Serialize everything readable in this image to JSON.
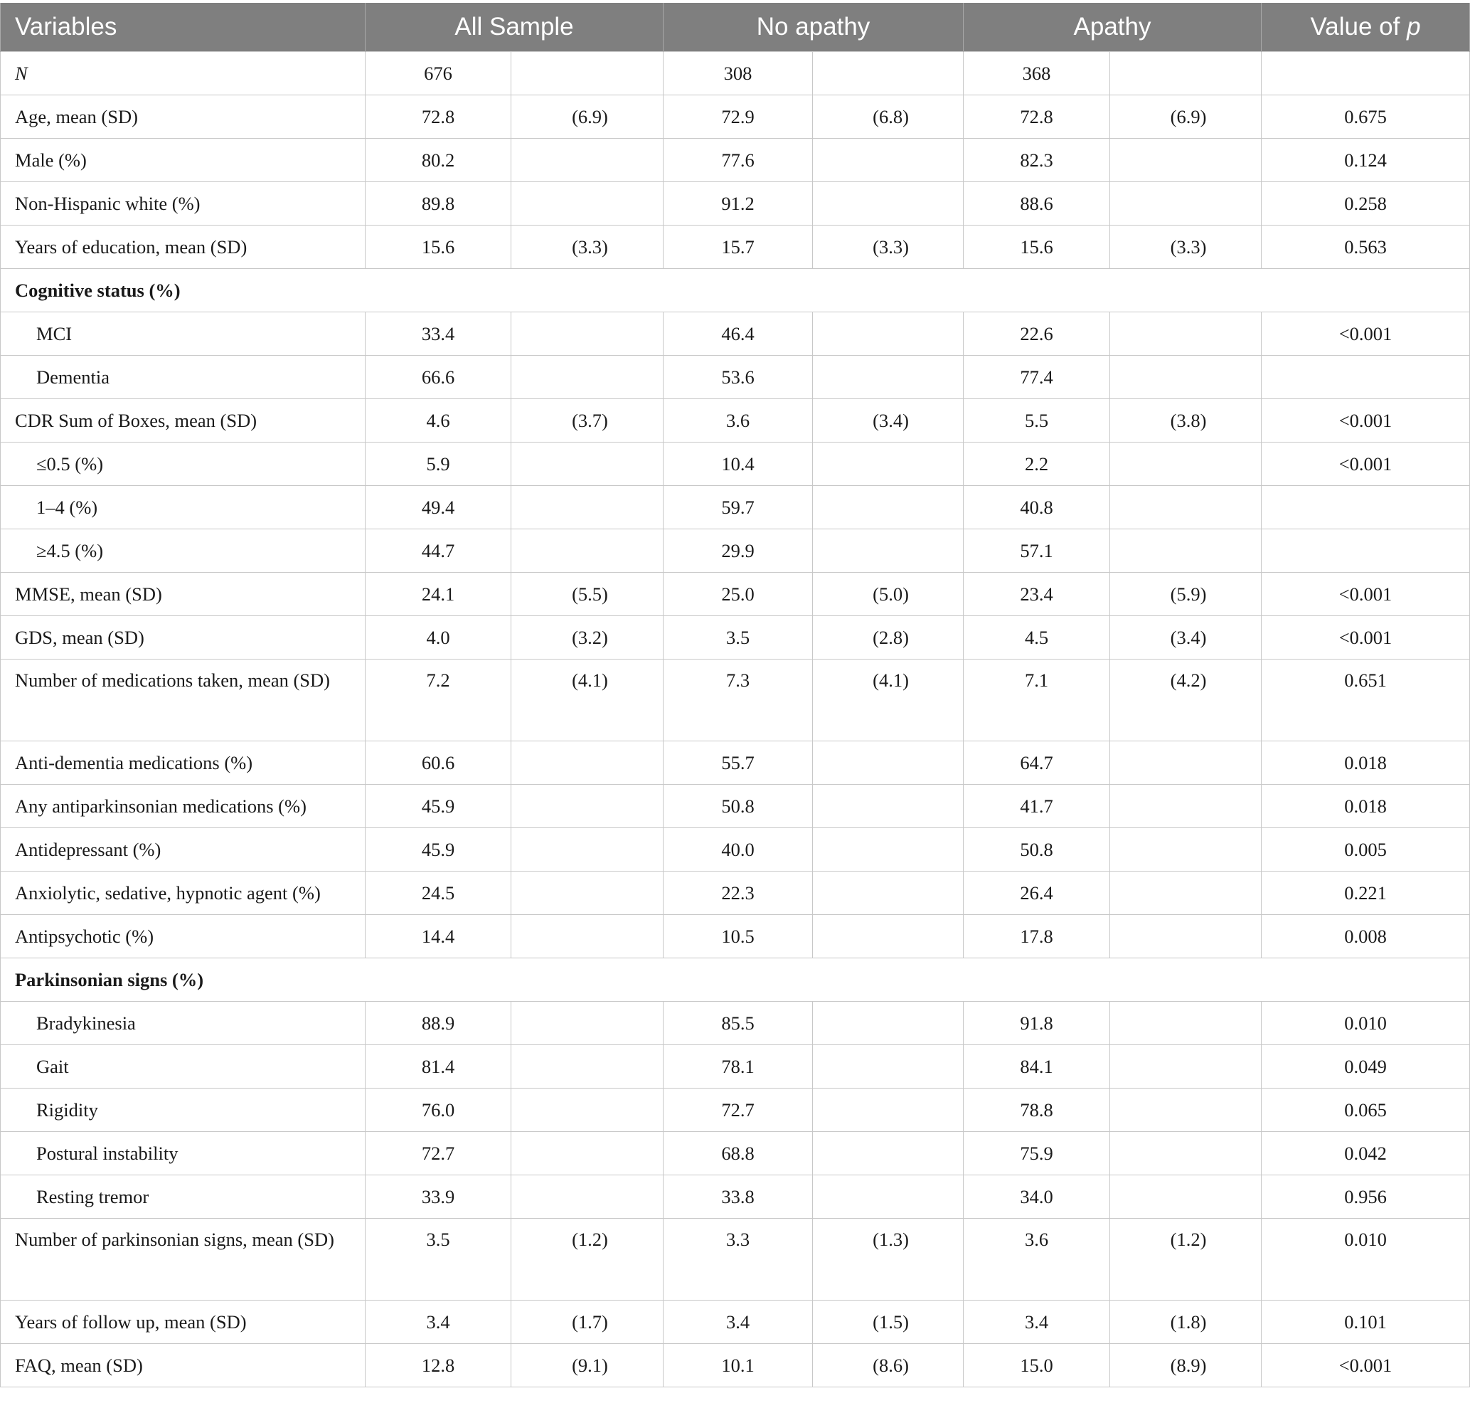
{
  "headers": {
    "variables": "Variables",
    "all_sample": "All Sample",
    "no_apathy": "No apathy",
    "apathy": "Apathy",
    "p_value_prefix": "Value of ",
    "p_value_symbol": "p"
  },
  "rows": [
    {
      "label": "N",
      "italic": true,
      "all": "676",
      "all_sd": "",
      "no": "308",
      "no_sd": "",
      "ap": "368",
      "ap_sd": "",
      "p": ""
    },
    {
      "label": "Age, mean (SD)",
      "all": "72.8",
      "all_sd": "(6.9)",
      "no": "72.9",
      "no_sd": "(6.8)",
      "ap": "72.8",
      "ap_sd": "(6.9)",
      "p": "0.675"
    },
    {
      "label": "Male (%)",
      "all": "80.2",
      "all_sd": "",
      "no": "77.6",
      "no_sd": "",
      "ap": "82.3",
      "ap_sd": "",
      "p": "0.124"
    },
    {
      "label": "Non-Hispanic white (%)",
      "all": "89.8",
      "all_sd": "",
      "no": "91.2",
      "no_sd": "",
      "ap": "88.6",
      "ap_sd": "",
      "p": "0.258"
    },
    {
      "label": "Years of education, mean (SD)",
      "all": "15.6",
      "all_sd": "(3.3)",
      "no": "15.7",
      "no_sd": "(3.3)",
      "ap": "15.6",
      "ap_sd": "(3.3)",
      "p": "0.563"
    },
    {
      "section": "Cognitive status (%)"
    },
    {
      "label": "MCI",
      "sub": true,
      "all": "33.4",
      "all_sd": "",
      "no": "46.4",
      "no_sd": "",
      "ap": "22.6",
      "ap_sd": "",
      "p": "<0.001"
    },
    {
      "label": "Dementia",
      "sub": true,
      "all": "66.6",
      "all_sd": "",
      "no": "53.6",
      "no_sd": "",
      "ap": "77.4",
      "ap_sd": "",
      "p": ""
    },
    {
      "label": "CDR Sum of Boxes, mean (SD)",
      "all": "4.6",
      "all_sd": "(3.7)",
      "no": "3.6",
      "no_sd": "(3.4)",
      "ap": "5.5",
      "ap_sd": "(3.8)",
      "p": "<0.001"
    },
    {
      "label": "≤0.5 (%)",
      "sub": true,
      "all": "5.9",
      "all_sd": "",
      "no": "10.4",
      "no_sd": "",
      "ap": "2.2",
      "ap_sd": "",
      "p": "<0.001"
    },
    {
      "label": "1–4 (%)",
      "sub": true,
      "all": "49.4",
      "all_sd": "",
      "no": "59.7",
      "no_sd": "",
      "ap": "40.8",
      "ap_sd": "",
      "p": ""
    },
    {
      "label": "≥4.5 (%)",
      "sub": true,
      "all": "44.7",
      "all_sd": "",
      "no": "29.9",
      "no_sd": "",
      "ap": "57.1",
      "ap_sd": "",
      "p": ""
    },
    {
      "label": "MMSE, mean (SD)",
      "all": "24.1",
      "all_sd": "(5.5)",
      "no": "25.0",
      "no_sd": "(5.0)",
      "ap": "23.4",
      "ap_sd": "(5.9)",
      "p": "<0.001"
    },
    {
      "label": "GDS, mean (SD)",
      "all": "4.0",
      "all_sd": "(3.2)",
      "no": "3.5",
      "no_sd": "(2.8)",
      "ap": "4.5",
      "ap_sd": "(3.4)",
      "p": "<0.001"
    },
    {
      "label": "Number of medications taken, mean (SD)",
      "tall": true,
      "all": "7.2",
      "all_sd": "(4.1)",
      "no": "7.3",
      "no_sd": "(4.1)",
      "ap": "7.1",
      "ap_sd": "(4.2)",
      "p": "0.651"
    },
    {
      "label": "Anti-dementia medications (%)",
      "all": "60.6",
      "all_sd": "",
      "no": "55.7",
      "no_sd": "",
      "ap": "64.7",
      "ap_sd": "",
      "p": "0.018"
    },
    {
      "label": "Any antiparkinsonian medications (%)",
      "all": "45.9",
      "all_sd": "",
      "no": "50.8",
      "no_sd": "",
      "ap": "41.7",
      "ap_sd": "",
      "p": "0.018"
    },
    {
      "label": "Antidepressant (%)",
      "all": "45.9",
      "all_sd": "",
      "no": "40.0",
      "no_sd": "",
      "ap": "50.8",
      "ap_sd": "",
      "p": "0.005"
    },
    {
      "label": "Anxiolytic, sedative, hypnotic agent (%)",
      "all": "24.5",
      "all_sd": "",
      "no": "22.3",
      "no_sd": "",
      "ap": "26.4",
      "ap_sd": "",
      "p": "0.221"
    },
    {
      "label": "Antipsychotic (%)",
      "all": "14.4",
      "all_sd": "",
      "no": "10.5",
      "no_sd": "",
      "ap": "17.8",
      "ap_sd": "",
      "p": "0.008"
    },
    {
      "section": "Parkinsonian signs (%)"
    },
    {
      "label": "Bradykinesia",
      "sub": true,
      "all": "88.9",
      "all_sd": "",
      "no": "85.5",
      "no_sd": "",
      "ap": "91.8",
      "ap_sd": "",
      "p": "0.010"
    },
    {
      "label": "Gait",
      "sub": true,
      "all": "81.4",
      "all_sd": "",
      "no": "78.1",
      "no_sd": "",
      "ap": "84.1",
      "ap_sd": "",
      "p": "0.049"
    },
    {
      "label": "Rigidity",
      "sub": true,
      "all": "76.0",
      "all_sd": "",
      "no": "72.7",
      "no_sd": "",
      "ap": "78.8",
      "ap_sd": "",
      "p": "0.065"
    },
    {
      "label": "Postural instability",
      "sub": true,
      "all": "72.7",
      "all_sd": "",
      "no": "68.8",
      "no_sd": "",
      "ap": "75.9",
      "ap_sd": "",
      "p": "0.042"
    },
    {
      "label": "Resting tremor",
      "sub": true,
      "all": "33.9",
      "all_sd": "",
      "no": "33.8",
      "no_sd": "",
      "ap": "34.0",
      "ap_sd": "",
      "p": "0.956"
    },
    {
      "label": "Number of parkinsonian signs, mean (SD)",
      "tall": true,
      "all": "3.5",
      "all_sd": "(1.2)",
      "no": "3.3",
      "no_sd": "(1.3)",
      "ap": "3.6",
      "ap_sd": "(1.2)",
      "p": "0.010"
    },
    {
      "label": "Years of follow up, mean (SD)",
      "all": "3.4",
      "all_sd": "(1.7)",
      "no": "3.4",
      "no_sd": "(1.5)",
      "ap": "3.4",
      "ap_sd": "(1.8)",
      "p": "0.101"
    },
    {
      "label": "FAQ, mean (SD)",
      "all": "12.8",
      "all_sd": "(9.1)",
      "no": "10.1",
      "no_sd": "(8.6)",
      "ap": "15.0",
      "ap_sd": "(8.9)",
      "p": "<0.001"
    }
  ]
}
